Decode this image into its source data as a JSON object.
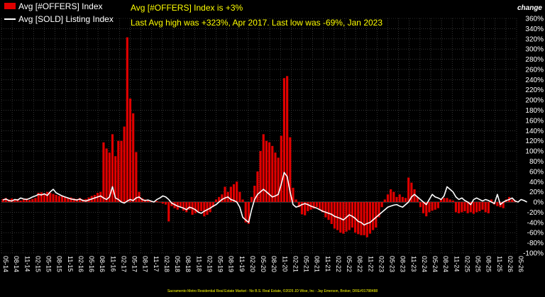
{
  "chart_data": {
    "type": "bar",
    "legend": [
      "Avg [#OFFERS] Index",
      "Avg [SOLD] Listing Index"
    ],
    "legend_position": "top-left",
    "annotations": [
      "Avg [#OFFERS] Index is +3%",
      "Last Avg high was +323%, Apr 2017. Last low was -69%, Jan 2023"
    ],
    "y_axis_title": "change",
    "y_axis_side": "right",
    "ylim": [
      -100,
      360
    ],
    "y_ticks": [
      "360%",
      "340%",
      "320%",
      "300%",
      "280%",
      "260%",
      "240%",
      "220%",
      "200%",
      "180%",
      "160%",
      "140%",
      "120%",
      "100%",
      "80%",
      "60%",
      "40%",
      "20%",
      "0%",
      "-20%",
      "-40%",
      "-60%",
      "-80%",
      "-100%"
    ],
    "x_ticks": [
      "05-14",
      "08-14",
      "11-14",
      "02-15",
      "05-15",
      "08-15",
      "11-15",
      "02-16",
      "05-16",
      "08-16",
      "11-16",
      "02-17",
      "05-17",
      "08-17",
      "11-17",
      "02-18",
      "05-18",
      "08-18",
      "11-18",
      "02-19",
      "05-19",
      "08-19",
      "11-19",
      "02-20",
      "05-20",
      "08-20",
      "11-20",
      "02-21",
      "05-21",
      "08-21",
      "11-21",
      "02-22",
      "05-22",
      "08-22",
      "11-22",
      "02-23",
      "05-23",
      "08-23",
      "11-23",
      "02-24",
      "05-24",
      "08-24",
      "11-24",
      "02-25",
      "05-25",
      "08-25",
      "11-25",
      "02-26",
      "05-26"
    ],
    "grid": true,
    "colors": {
      "offers": "#e00000",
      "sold": "#ffffff",
      "annotation": "#ffff00",
      "background": "#000000"
    },
    "series": [
      {
        "name": "Avg [#OFFERS] Index",
        "type": "bar",
        "values": [
          6,
          8,
          5,
          7,
          4,
          6,
          3,
          5,
          7,
          4,
          6,
          8,
          18,
          19,
          17,
          20,
          18,
          16,
          14,
          12,
          13,
          10,
          8,
          9,
          7,
          6,
          8,
          5,
          6,
          9,
          12,
          14,
          18,
          20,
          117,
          105,
          97,
          133,
          90,
          120,
          120,
          148,
          323,
          203,
          174,
          98,
          20,
          8,
          5,
          3,
          2,
          0,
          2,
          -1,
          -3,
          -5,
          -38,
          -8,
          -12,
          -15,
          -10,
          -17,
          -20,
          -15,
          -25,
          -22,
          -20,
          -18,
          -28,
          -25,
          -20,
          -10,
          5,
          10,
          15,
          30,
          20,
          30,
          35,
          40,
          20,
          5,
          -40,
          -43,
          10,
          32,
          60,
          100,
          133,
          120,
          117,
          110,
          97,
          87,
          130,
          243,
          247,
          127,
          28,
          5,
          -10,
          -24,
          -26,
          -18,
          -15,
          -13,
          -10,
          -15,
          -20,
          -30,
          -35,
          -43,
          -52,
          -55,
          -60,
          -62,
          -58,
          -55,
          -50,
          -60,
          -63,
          -65,
          -65,
          -69,
          -62,
          -55,
          -50,
          -30,
          -10,
          5,
          15,
          25,
          20,
          10,
          15,
          10,
          8,
          48,
          38,
          25,
          10,
          -10,
          -22,
          -28,
          -20,
          -17,
          -15,
          -12,
          5,
          8,
          8,
          5,
          3,
          -20,
          -22,
          -20,
          -18,
          -22,
          -20,
          -23,
          -20,
          -18,
          -15,
          -20,
          -22,
          5,
          -5,
          -8,
          -10,
          -12,
          5,
          10,
          5,
          3
        ]
      },
      {
        "name": "Avg [SOLD] Listing Index",
        "type": "line",
        "values": [
          4,
          6,
          3,
          2,
          5,
          4,
          8,
          6,
          5,
          7,
          10,
          12,
          15,
          14,
          16,
          13,
          20,
          25,
          18,
          15,
          12,
          10,
          8,
          6,
          5,
          4,
          6,
          3,
          2,
          4,
          6,
          8,
          10,
          12,
          8,
          5,
          10,
          30,
          8,
          5,
          0,
          -2,
          2,
          5,
          3,
          8,
          10,
          5,
          3,
          4,
          2,
          0,
          5,
          8,
          12,
          10,
          5,
          -2,
          -5,
          -8,
          -10,
          -12,
          -15,
          -10,
          -12,
          -15,
          -20,
          -22,
          -18,
          -15,
          -12,
          -8,
          -5,
          0,
          5,
          8,
          10,
          5,
          3,
          0,
          -10,
          -30,
          -35,
          -40,
          -15,
          5,
          15,
          20,
          25,
          20,
          15,
          10,
          12,
          15,
          35,
          58,
          50,
          20,
          -5,
          -10,
          -8,
          -5,
          -3,
          -5,
          -8,
          -10,
          -12,
          -15,
          -18,
          -20,
          -22,
          -24,
          -28,
          -30,
          -32,
          -35,
          -30,
          -25,
          -28,
          -32,
          -38,
          -40,
          -45,
          -42,
          -40,
          -35,
          -30,
          -25,
          -20,
          -15,
          -10,
          -8,
          -6,
          -5,
          -8,
          -10,
          -5,
          0,
          10,
          15,
          10,
          5,
          0,
          -5,
          5,
          15,
          10,
          8,
          5,
          12,
          30,
          25,
          20,
          10,
          5,
          8,
          3,
          0,
          -5,
          5,
          8,
          5,
          2,
          5,
          3,
          0,
          -3,
          15,
          -5,
          0,
          3,
          5,
          8,
          2,
          0,
          5,
          3,
          0
        ]
      }
    ],
    "footer": "Sacramento Metro Residential Real Estate Market - No B.S. Real Estate, ©2026 JD Wise, Inc - Jay Emerson, Broker, DRE#01788488"
  }
}
